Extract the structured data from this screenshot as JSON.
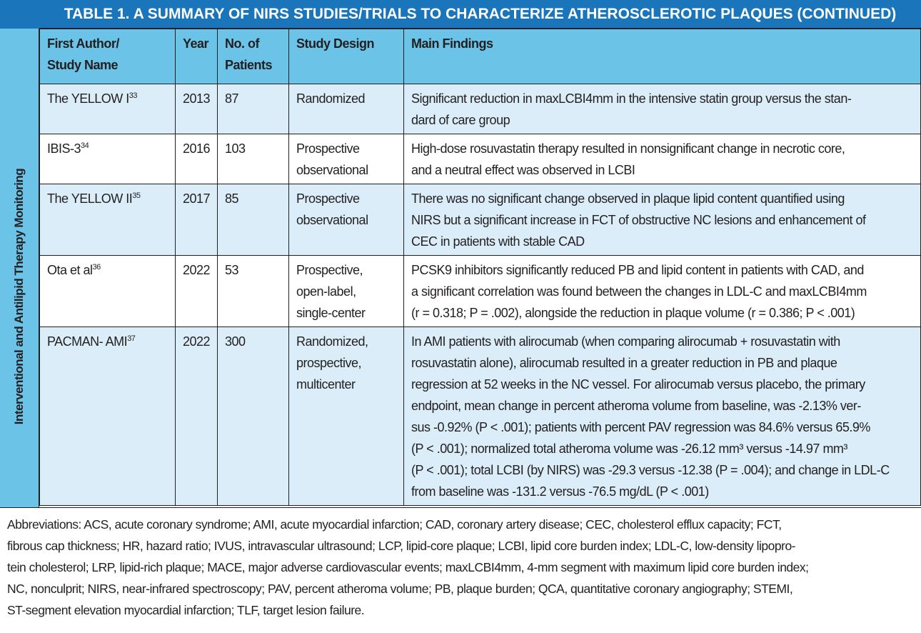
{
  "title": "TABLE 1.  A SUMMARY OF NIRS STUDIES/TRIALS TO CHARACTERIZE ATHEROSCLEROTIC PLAQUES (CONTINUED)",
  "side_label": "Interventional and Antilipid Therapy Monitoring",
  "headers": [
    [
      "First Author/",
      "Study Name"
    ],
    [
      "Year"
    ],
    [
      "No. of",
      "Patients"
    ],
    [
      "Study Design"
    ],
    [
      "Main Findings"
    ]
  ],
  "rows": [
    {
      "name": "The YELLOW I",
      "ref": "33",
      "year": "2013",
      "n": "87",
      "design": [
        "Randomized"
      ],
      "findings": [
        "Significant reduction in maxLCBI4mm in the intensive statin group versus the stan-",
        "dard of care group"
      ]
    },
    {
      "name": "IBIS-3",
      "ref": "34",
      "year": "2016",
      "n": "103",
      "design": [
        "Prospective",
        "observational"
      ],
      "findings": [
        "High-dose rosuvastatin therapy resulted in nonsignificant change in necrotic core,",
        "and a neutral effect was observed in LCBI"
      ]
    },
    {
      "name": "The YELLOW II",
      "ref": "35",
      "year": "2017",
      "n": "85",
      "design": [
        "Prospective",
        "observational"
      ],
      "findings": [
        "There was no significant change observed in plaque lipid content quantified using",
        "NIRS but a significant increase in FCT of obstructive NC lesions and enhancement of",
        "CEC in patients with stable CAD"
      ]
    },
    {
      "name": "Ota et al",
      "ref": "36",
      "year": "2022",
      "n": "53",
      "design": [
        "Prospective,",
        "open-label,",
        "single-center"
      ],
      "findings": [
        "PCSK9 inhibitors significantly reduced PB and lipid content in patients with CAD, and",
        "a significant correlation was found between the changes in LDL-C and maxLCBI4mm",
        "(r = 0.318; P = .002), alongside the reduction in plaque volume (r = 0.386; P < .001)"
      ]
    },
    {
      "name": "PACMAN- AMI",
      "ref": "37",
      "year": "2022",
      "n": "300",
      "design": [
        "Randomized,",
        "prospective,",
        "multicenter"
      ],
      "findings": [
        "In AMI patients with alirocumab (when comparing alirocumab + rosuvastatin with",
        "rosuvastatin alone), alirocumab resulted in a greater reduction in PB and plaque",
        "regression at 52 weeks in the NC vessel. For alirocumab versus placebo, the primary",
        "endpoint, mean change in percent atheroma volume from baseline, was -2.13% ver-",
        "sus -0.92% (P < .001); patients with percent PAV regression was 84.6% versus 65.9%",
        "(P < .001); normalized total atheroma volume was -26.12 mm³ versus -14.97 mm³",
        "(P < .001); total LCBI (by NIRS) was -29.3 versus -12.38 (P = .004); and change in LDL-C",
        "from baseline was -131.2 versus -76.5 mg/dL (P < .001)"
      ]
    }
  ],
  "abbreviations": [
    "Abbreviations: ACS, acute coronary syndrome; AMI, acute myocardial infarction; CAD, coronary artery disease; CEC, cholesterol efflux capacity; FCT,",
    "fibrous cap thickness; HR, hazard ratio; IVUS, intravascular ultrasound; LCP, lipid-core plaque; LCBI, lipid core burden index; LDL-C, low-density lipopro-",
    "tein cholesterol; LRP, lipid-rich plaque; MACE, major adverse cardiovascular events; maxLCBI4mm, 4-mm segment with maximum lipid core burden index;",
    "NC, nonculprit; NIRS, near-infrared spectroscopy; PAV, percent atheroma volume; PB, plaque burden; QCA, quantitative coronary angiography; STEMI,",
    "ST-segment elevation myocardial infarction; TLF, target lesion failure."
  ]
}
